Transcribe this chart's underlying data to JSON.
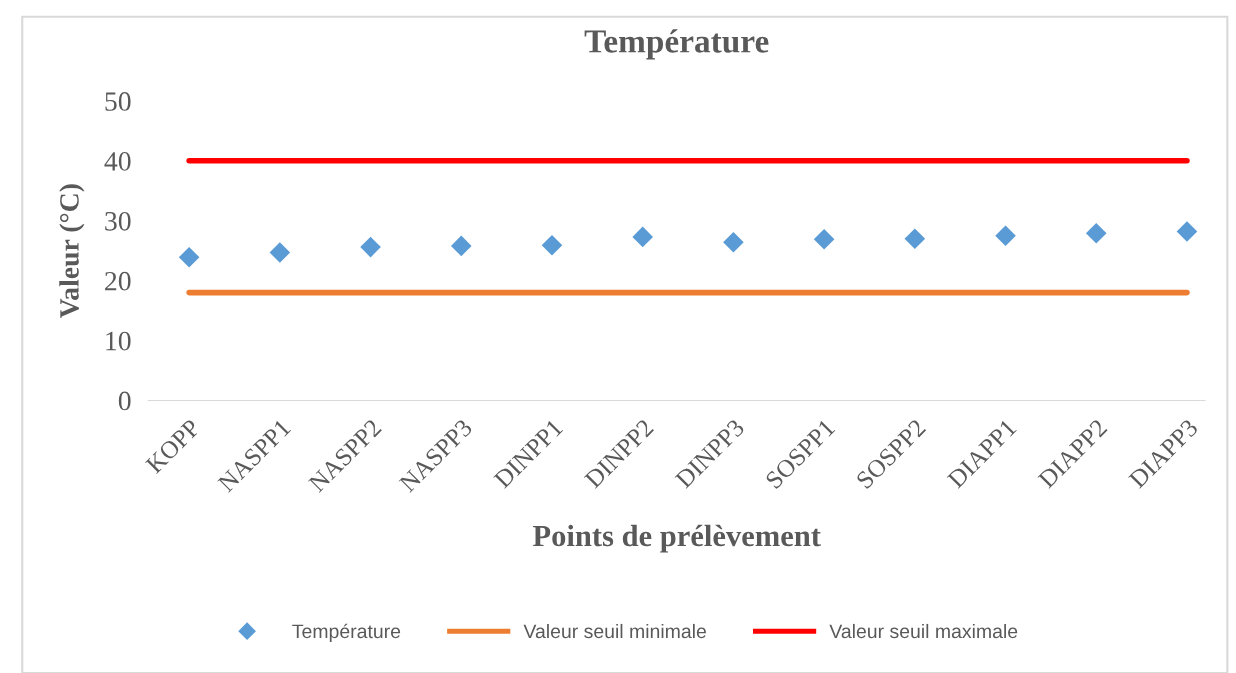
{
  "chart_data": {
    "type": "scatter",
    "title": "Température",
    "xlabel": "Points de prélèvement",
    "ylabel": "Valeur (°C)",
    "categories": [
      "KOPP",
      "NASPP1",
      "NASPP2",
      "NASPP3",
      "DINPP1",
      "DINPP2",
      "DINPP3",
      "SOSPP1",
      "SOSPP2",
      "DIAPP1",
      "DIAPP2",
      "DIAPP3"
    ],
    "series": [
      {
        "name": "Température",
        "color": "#5b9bd5",
        "marker": "diamond",
        "values": [
          23.9,
          24.7,
          25.6,
          25.8,
          25.9,
          27.3,
          26.4,
          26.9,
          27.0,
          27.5,
          27.9,
          28.2
        ]
      },
      {
        "name": "Valeur seuil minimale",
        "type": "line",
        "color": "#ed7d31",
        "values": [
          18,
          18,
          18,
          18,
          18,
          18,
          18,
          18,
          18,
          18,
          18,
          18
        ]
      },
      {
        "name": "Valeur seuil maximale",
        "type": "line",
        "color": "#ff0000",
        "values": [
          40,
          40,
          40,
          40,
          40,
          40,
          40,
          40,
          40,
          40,
          40,
          40
        ]
      }
    ],
    "ylim": [
      0,
      50
    ],
    "yticks": [
      0,
      10,
      20,
      30,
      40,
      50
    ],
    "grid": false,
    "legend": "bottom"
  }
}
